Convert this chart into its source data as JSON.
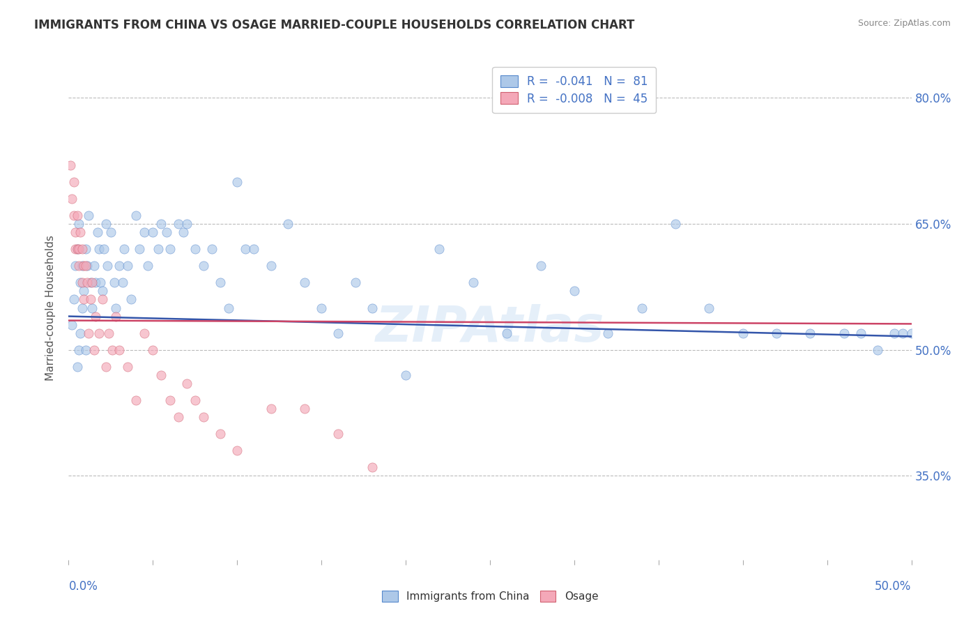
{
  "title": "IMMIGRANTS FROM CHINA VS OSAGE MARRIED-COUPLE HOUSEHOLDS CORRELATION CHART",
  "source": "Source: ZipAtlas.com",
  "ylabel": "Married-couple Households",
  "xmin": 0.0,
  "xmax": 0.5,
  "ymin": 0.25,
  "ymax": 0.85,
  "yticks": [
    0.35,
    0.5,
    0.65,
    0.8
  ],
  "ytick_labels": [
    "35.0%",
    "50.0%",
    "65.0%",
    "80.0%"
  ],
  "series_blue": {
    "R": -0.041,
    "N": 81,
    "color": "#adc8e8",
    "edge_color": "#5588cc",
    "line_color": "#3355aa",
    "x": [
      0.002,
      0.003,
      0.004,
      0.005,
      0.005,
      0.006,
      0.006,
      0.007,
      0.007,
      0.008,
      0.008,
      0.009,
      0.01,
      0.01,
      0.011,
      0.012,
      0.013,
      0.014,
      0.015,
      0.016,
      0.017,
      0.018,
      0.019,
      0.02,
      0.021,
      0.022,
      0.023,
      0.025,
      0.027,
      0.028,
      0.03,
      0.032,
      0.033,
      0.035,
      0.037,
      0.04,
      0.042,
      0.045,
      0.047,
      0.05,
      0.053,
      0.055,
      0.058,
      0.06,
      0.065,
      0.068,
      0.07,
      0.075,
      0.08,
      0.085,
      0.09,
      0.095,
      0.1,
      0.105,
      0.11,
      0.12,
      0.13,
      0.14,
      0.15,
      0.16,
      0.17,
      0.18,
      0.2,
      0.22,
      0.24,
      0.26,
      0.28,
      0.3,
      0.32,
      0.34,
      0.36,
      0.38,
      0.4,
      0.42,
      0.44,
      0.46,
      0.47,
      0.48,
      0.49,
      0.495,
      0.5
    ],
    "y": [
      0.53,
      0.56,
      0.6,
      0.62,
      0.48,
      0.65,
      0.5,
      0.58,
      0.52,
      0.6,
      0.55,
      0.57,
      0.62,
      0.5,
      0.6,
      0.66,
      0.58,
      0.55,
      0.6,
      0.58,
      0.64,
      0.62,
      0.58,
      0.57,
      0.62,
      0.65,
      0.6,
      0.64,
      0.58,
      0.55,
      0.6,
      0.58,
      0.62,
      0.6,
      0.56,
      0.66,
      0.62,
      0.64,
      0.6,
      0.64,
      0.62,
      0.65,
      0.64,
      0.62,
      0.65,
      0.64,
      0.65,
      0.62,
      0.6,
      0.62,
      0.58,
      0.55,
      0.7,
      0.62,
      0.62,
      0.6,
      0.65,
      0.58,
      0.55,
      0.52,
      0.58,
      0.55,
      0.47,
      0.62,
      0.58,
      0.52,
      0.6,
      0.57,
      0.52,
      0.55,
      0.65,
      0.55,
      0.52,
      0.52,
      0.52,
      0.52,
      0.52,
      0.5,
      0.52,
      0.52,
      0.52
    ],
    "trendline_y0": 0.54,
    "trendline_y1": 0.516
  },
  "series_pink": {
    "R": -0.008,
    "N": 45,
    "color": "#f4a8b8",
    "edge_color": "#d06070",
    "line_color": "#cc4466",
    "x": [
      0.001,
      0.002,
      0.003,
      0.003,
      0.004,
      0.004,
      0.005,
      0.005,
      0.006,
      0.006,
      0.007,
      0.008,
      0.008,
      0.009,
      0.009,
      0.01,
      0.011,
      0.012,
      0.013,
      0.014,
      0.015,
      0.016,
      0.018,
      0.02,
      0.022,
      0.024,
      0.026,
      0.028,
      0.03,
      0.035,
      0.04,
      0.045,
      0.05,
      0.055,
      0.06,
      0.065,
      0.07,
      0.075,
      0.08,
      0.09,
      0.1,
      0.12,
      0.14,
      0.16,
      0.18
    ],
    "y": [
      0.72,
      0.68,
      0.66,
      0.7,
      0.64,
      0.62,
      0.66,
      0.62,
      0.62,
      0.6,
      0.64,
      0.62,
      0.58,
      0.6,
      0.56,
      0.6,
      0.58,
      0.52,
      0.56,
      0.58,
      0.5,
      0.54,
      0.52,
      0.56,
      0.48,
      0.52,
      0.5,
      0.54,
      0.5,
      0.48,
      0.44,
      0.52,
      0.5,
      0.47,
      0.44,
      0.42,
      0.46,
      0.44,
      0.42,
      0.4,
      0.38,
      0.43,
      0.43,
      0.4,
      0.36
    ],
    "trendline_y0": 0.535,
    "trendline_y1": 0.531
  },
  "watermark_text": "ZIPAtlas",
  "watermark_color": "#aaccee",
  "watermark_alpha": 0.3,
  "background_color": "#ffffff",
  "grid_color": "#bbbbbb",
  "grid_linestyle": "--",
  "title_color": "#333333",
  "axis_label_color": "#4472c4",
  "ylabel_color": "#555555",
  "source_color": "#888888",
  "marker_size": 90,
  "marker_alpha": 0.65,
  "marker_linewidth": 0.5,
  "trendline_linewidth": 1.8
}
